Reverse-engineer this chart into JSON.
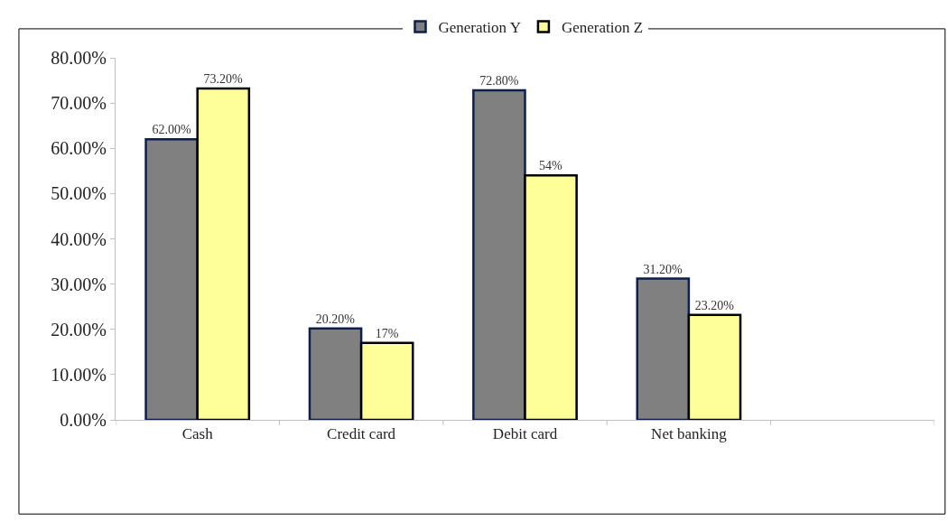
{
  "chart_data": {
    "type": "bar",
    "categories": [
      "Cash",
      "Credit card",
      "Debit card",
      "Net banking",
      null
    ],
    "series": [
      {
        "name": "Generation Y",
        "color": "#808080",
        "values": [
          62.0,
          20.2,
          72.8,
          31.2,
          null
        ],
        "value_labels": [
          "62.00%",
          "20.20%",
          "72.80%",
          "31.20%",
          null
        ]
      },
      {
        "name": "Generation Z",
        "color": "#ffff99",
        "values": [
          73.2,
          17,
          54,
          23.2,
          null
        ],
        "value_labels": [
          "73.20%",
          "17%",
          "54%",
          "23.20%",
          null
        ]
      }
    ],
    "ylim": [
      0,
      80
    ],
    "yticks": [
      {
        "value": 0,
        "label": "0.00%"
      },
      {
        "value": 10,
        "label": "10.00%"
      },
      {
        "value": 20,
        "label": "20.00%"
      },
      {
        "value": 30,
        "label": "30.00%"
      },
      {
        "value": 40,
        "label": "40.00%"
      },
      {
        "value": 50,
        "label": "50.00%"
      },
      {
        "value": 60,
        "label": "60.00%"
      },
      {
        "value": 70,
        "label": "70.00%"
      },
      {
        "value": 80,
        "label": "80.00%"
      }
    ],
    "grid": false,
    "legend": "top"
  }
}
